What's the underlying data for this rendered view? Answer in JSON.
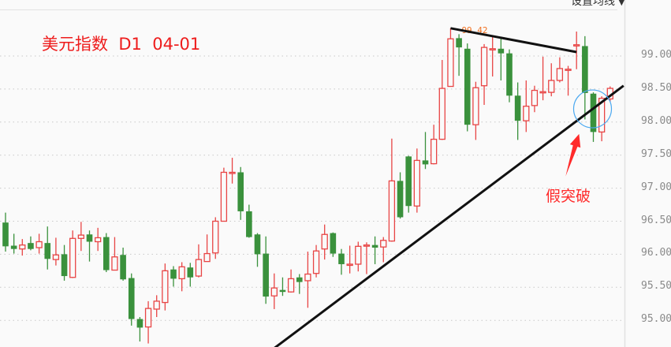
{
  "header": {
    "title": "美元指数  D1  04-01",
    "ma_menu_label": "设置均线",
    "ma_menu_icon": "caret-down-icon"
  },
  "annotation": {
    "label": "假突破",
    "color": "#ff2a2a",
    "circle_color": "#4aa8f0"
  },
  "colors": {
    "up": "#e84545",
    "down": "#3a913c",
    "trendline": "#111111",
    "grid": "#c8c8c8"
  },
  "chart_data": {
    "type": "candlestick",
    "title": "美元指数  D1  04-01",
    "y_ticks": [
      "99.00",
      "98.50",
      "98.00",
      "97.50",
      "97.00",
      "96.50",
      "96.00",
      "95.50",
      "95.00"
    ],
    "ylim": [
      94.6,
      99.85
    ],
    "grid": true,
    "max_label": "99.42",
    "ohlc_fields": [
      "open",
      "high",
      "low",
      "close"
    ],
    "candles": [
      [
        96.48,
        96.63,
        96.04,
        96.12
      ],
      [
        96.13,
        96.31,
        96.01,
        96.08
      ],
      [
        96.08,
        96.23,
        95.98,
        96.14
      ],
      [
        96.17,
        96.27,
        96.06,
        96.08
      ],
      [
        96.1,
        96.31,
        96.01,
        96.19
      ],
      [
        96.17,
        96.42,
        95.77,
        95.93
      ],
      [
        95.92,
        96.25,
        95.83,
        95.99
      ],
      [
        96.0,
        96.14,
        95.6,
        95.67
      ],
      [
        95.65,
        96.36,
        95.64,
        96.24
      ],
      [
        96.24,
        96.49,
        96.05,
        96.29
      ],
      [
        96.3,
        96.36,
        95.89,
        96.19
      ],
      [
        96.19,
        96.4,
        96.05,
        96.25
      ],
      [
        96.26,
        96.32,
        95.73,
        95.76
      ],
      [
        95.76,
        96.26,
        95.76,
        95.96
      ],
      [
        95.99,
        96.1,
        95.6,
        95.62
      ],
      [
        95.64,
        95.71,
        94.92,
        95.02
      ],
      [
        95.02,
        95.05,
        94.68,
        94.89
      ],
      [
        94.9,
        95.29,
        94.65,
        95.18
      ],
      [
        95.17,
        95.38,
        95.05,
        95.29
      ],
      [
        95.27,
        95.86,
        95.15,
        95.75
      ],
      [
        95.77,
        95.82,
        95.51,
        95.63
      ],
      [
        95.63,
        95.88,
        95.44,
        95.81
      ],
      [
        95.8,
        95.87,
        95.51,
        95.65
      ],
      [
        95.67,
        96.15,
        95.65,
        95.92
      ],
      [
        95.89,
        96.3,
        95.89,
        96.01
      ],
      [
        96.02,
        96.56,
        95.93,
        96.5
      ],
      [
        96.5,
        97.31,
        96.5,
        97.24
      ],
      [
        97.24,
        97.46,
        97.07,
        97.24
      ],
      [
        97.24,
        97.32,
        96.52,
        96.65
      ],
      [
        96.65,
        96.75,
        96.25,
        96.26
      ],
      [
        96.3,
        96.32,
        95.81,
        96.0
      ],
      [
        96.01,
        96.27,
        95.25,
        95.36
      ],
      [
        95.37,
        95.71,
        95.17,
        95.49
      ],
      [
        95.46,
        95.65,
        95.37,
        95.43
      ],
      [
        95.43,
        95.77,
        95.42,
        95.63
      ],
      [
        95.65,
        95.7,
        95.4,
        95.58
      ],
      [
        95.6,
        96.04,
        95.19,
        95.7
      ],
      [
        95.71,
        96.14,
        95.65,
        96.05
      ],
      [
        96.08,
        96.45,
        95.92,
        96.3
      ],
      [
        96.32,
        96.33,
        95.96,
        96.01
      ],
      [
        96.01,
        96.08,
        95.69,
        95.85
      ],
      [
        95.85,
        96.13,
        95.71,
        95.85
      ],
      [
        95.85,
        96.19,
        95.74,
        96.12
      ],
      [
        96.14,
        96.18,
        95.7,
        96.14
      ],
      [
        96.14,
        96.27,
        95.85,
        96.1
      ],
      [
        96.11,
        96.26,
        95.88,
        96.21
      ],
      [
        96.2,
        97.75,
        96.19,
        97.11
      ],
      [
        97.11,
        97.24,
        96.54,
        96.56
      ],
      [
        97.48,
        97.49,
        96.63,
        96.73
      ],
      [
        96.73,
        97.6,
        96.63,
        97.42
      ],
      [
        97.42,
        97.85,
        97.29,
        97.36
      ],
      [
        97.37,
        97.96,
        97.36,
        97.74
      ],
      [
        97.74,
        98.94,
        97.73,
        98.51
      ],
      [
        98.54,
        99.42,
        98.54,
        99.26
      ],
      [
        99.27,
        99.33,
        98.7,
        99.13
      ],
      [
        99.11,
        99.19,
        97.86,
        97.96
      ],
      [
        97.96,
        98.61,
        97.73,
        98.52
      ],
      [
        98.55,
        99.18,
        98.26,
        99.13
      ],
      [
        99.11,
        99.31,
        98.69,
        99.11
      ],
      [
        99.11,
        99.27,
        98.63,
        99.04
      ],
      [
        99.04,
        99.1,
        98.3,
        98.4
      ],
      [
        98.4,
        98.6,
        97.73,
        98.02
      ],
      [
        98.02,
        98.63,
        97.85,
        98.24
      ],
      [
        98.25,
        98.55,
        98.15,
        98.48
      ],
      [
        98.46,
        98.99,
        98.33,
        98.46
      ],
      [
        98.45,
        98.89,
        98.39,
        98.63
      ],
      [
        98.63,
        98.98,
        98.6,
        98.81
      ],
      [
        98.8,
        98.85,
        98.4,
        98.8
      ],
      [
        99.17,
        99.37,
        98.8,
        99.17
      ],
      [
        99.15,
        99.3,
        98.04,
        98.44
      ],
      [
        98.43,
        98.45,
        97.7,
        97.85
      ],
      [
        97.85,
        98.39,
        97.71,
        98.36
      ],
      [
        98.35,
        98.54,
        98.31,
        98.51
      ]
    ],
    "trendlines": [
      {
        "from": {
          "candle": 53,
          "price": 99.42
        },
        "to": {
          "candle": 68,
          "price": 99.06
        }
      },
      {
        "from": {
          "candle": 31.7,
          "price": 94.55
        },
        "to": {
          "candle": 73.6,
          "price": 98.55
        }
      }
    ],
    "highlight_circle": {
      "candle": 70,
      "price": 98.2
    },
    "arrow": {
      "from": {
        "candle": 66.7,
        "price": 97.18
      },
      "to": {
        "candle": 68.3,
        "price": 97.82
      }
    }
  }
}
